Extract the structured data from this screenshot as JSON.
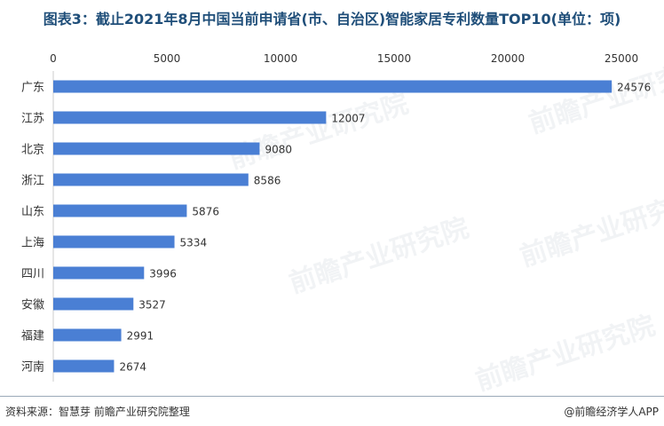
{
  "title": "图表3：截止2021年8月中国当前申请省(市、自治区)智能家居专利数量TOP10(单位：项)",
  "footer": {
    "source": "资料来源：智慧芽 前瞻产业研究院整理",
    "brand": "@前瞻经济学人APP"
  },
  "watermark": "前瞻产业研究院",
  "colors": {
    "bar": "#4a7fd4",
    "axis": "#cccccc",
    "title": "#1f4e79"
  },
  "chart_data": {
    "type": "bar",
    "orientation": "horizontal",
    "title": "图表3：截止2021年8月中国当前申请省(市、自治区)智能家居专利数量TOP10(单位：项)",
    "categories": [
      "广东",
      "江苏",
      "北京",
      "浙江",
      "山东",
      "上海",
      "四川",
      "安徽",
      "福建",
      "河南"
    ],
    "values": [
      24576,
      12007,
      9080,
      8586,
      5876,
      5334,
      3996,
      3527,
      2991,
      2674
    ],
    "x_ticks": [
      "0",
      "5000",
      "10000",
      "15000",
      "20000",
      "25000"
    ],
    "xlim": [
      0,
      25000
    ],
    "x_axis_position": "top",
    "grid": false,
    "legend": "none"
  }
}
